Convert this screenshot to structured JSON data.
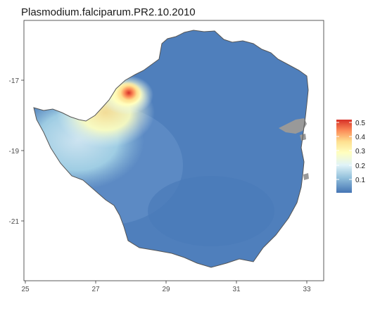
{
  "title": "Plasmodium.falciparum.PR2.10.2010",
  "chart_data": {
    "type": "heatmap",
    "title": "Plasmodium.falciparum.PR2.10.2010",
    "xlabel": "",
    "ylabel": "",
    "x_ticks": [
      25,
      27,
      29,
      31,
      33
    ],
    "y_ticks": [
      -17,
      -19,
      -21
    ],
    "xlim": [
      24.9,
      33.5
    ],
    "ylim": [
      -22.8,
      -15.5
    ],
    "legend": {
      "placement": "right",
      "ticks": [
        0.5,
        0.4,
        0.3,
        0.2,
        0.1
      ],
      "range": [
        0.02,
        0.5
      ],
      "colors": [
        "#4575b4",
        "#91bfdb",
        "#e0f3f8",
        "#ffffbf",
        "#fee090",
        "#fc8d59",
        "#d73027"
      ]
    },
    "hotspot": {
      "lon": 27.9,
      "lat": -17.3,
      "value": 0.5
    },
    "background_value": 0.05,
    "missing_color": "#999999",
    "grid": false
  }
}
